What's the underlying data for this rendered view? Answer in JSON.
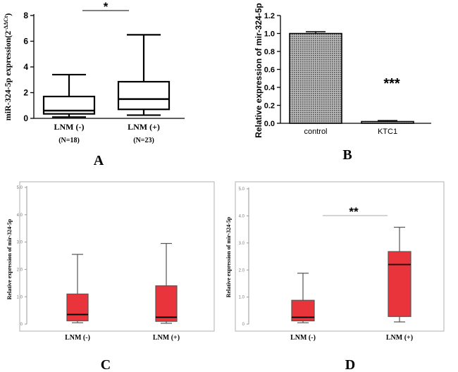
{
  "chart_data": [
    {
      "panel": "A",
      "type": "box",
      "ylabel": "miR-324-5p expression(2^-ΔΔCt)",
      "ylabel_main": "miR-324-5p expression(2",
      "ylabel_sup": "-ΔΔCt",
      "ylabel_close": ")",
      "ylim": [
        0,
        8
      ],
      "yticks": [
        "0",
        "2",
        "4",
        "6",
        "8"
      ],
      "categories": [
        "LNM (-)",
        "LNM (+)"
      ],
      "sublabels": [
        "(N=18)",
        "(N=23)"
      ],
      "boxes": [
        {
          "min": 0.1,
          "q1": 0.35,
          "median": 0.6,
          "q3": 1.7,
          "max": 3.4
        },
        {
          "min": 0.25,
          "q1": 0.7,
          "median": 1.5,
          "q3": 2.85,
          "max": 6.5
        }
      ],
      "significance": "*"
    },
    {
      "panel": "B",
      "type": "bar",
      "ylabel": "Relative expression of mir-324-5p",
      "ylim": [
        0,
        1.2
      ],
      "yticks": [
        "0.0",
        "0.2",
        "0.4",
        "0.6",
        "0.8",
        "1.0",
        "1.2"
      ],
      "categories": [
        "control",
        "KTC1"
      ],
      "values": [
        1.0,
        0.02
      ],
      "errors": [
        0.02,
        0.01
      ],
      "significance": "***"
    },
    {
      "panel": "C",
      "type": "box",
      "ylabel": "Relative expression of mir-324-5p",
      "ylim": [
        0,
        5
      ],
      "yticks": [
        "0",
        "1.0",
        "2.0",
        "3.0",
        "4.0",
        "5.0"
      ],
      "categories": [
        "LNM (-)",
        "LNM (+)"
      ],
      "boxes": [
        {
          "min": 0.05,
          "q1": 0.12,
          "median": 0.35,
          "q3": 1.1,
          "max": 2.55
        },
        {
          "min": 0.03,
          "q1": 0.1,
          "median": 0.25,
          "q3": 1.4,
          "max": 2.95
        }
      ]
    },
    {
      "panel": "D",
      "type": "box",
      "ylabel": "Relative expression of mir-324-5p",
      "ylim": [
        0,
        5
      ],
      "yticks": [
        "0",
        "1.0",
        "2.0",
        "3.0",
        "4.0",
        "5.0"
      ],
      "categories": [
        "LNM (-)",
        "LNM (+)"
      ],
      "boxes": [
        {
          "min": 0.05,
          "q1": 0.12,
          "median": 0.25,
          "q3": 0.88,
          "max": 1.88
        },
        {
          "min": 0.08,
          "q1": 0.28,
          "median": 2.2,
          "q3": 2.68,
          "max": 3.58
        }
      ],
      "significance": "**"
    }
  ],
  "colors": {
    "box_fill_red": "#e8343a",
    "axis": "#000000",
    "light_axis": "#8a8a8a"
  }
}
